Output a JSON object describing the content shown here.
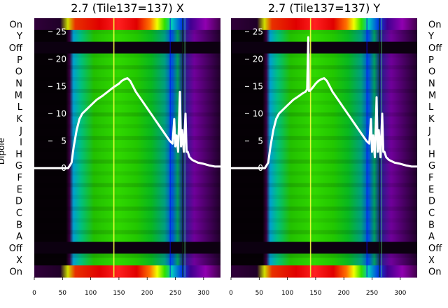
{
  "figure": {
    "ylabel": "Dipole",
    "row_labels": [
      "On",
      "Y",
      "Off",
      "P",
      "O",
      "N",
      "M",
      "L",
      "K",
      "J",
      "I",
      "H",
      "G",
      "F",
      "E",
      "D",
      "C",
      "B",
      "A",
      "Off",
      "X",
      "On"
    ]
  },
  "chart_data": [
    {
      "type": "heatmap",
      "title": "2.7 (Tile137=137) X",
      "xlim": [
        0,
        330
      ],
      "xticks": [
        0,
        50,
        100,
        150,
        200,
        250,
        300
      ],
      "overlay_ylim": [
        -20,
        27.5
      ],
      "overlay_yticks": [
        0,
        5,
        10,
        15,
        20,
        25
      ],
      "overlay_line": {
        "color": "#ffffff",
        "x": [
          0,
          60,
          66,
          70,
          75,
          80,
          85,
          90,
          100,
          110,
          120,
          130,
          140,
          150,
          155,
          160,
          165,
          170,
          175,
          180,
          190,
          200,
          210,
          220,
          230,
          240,
          245,
          248,
          250,
          252,
          255,
          258,
          260,
          262,
          265,
          268,
          270,
          272,
          275,
          280,
          290,
          300,
          310,
          320,
          330
        ],
        "y": [
          0,
          0,
          1,
          4,
          7,
          9,
          10,
          10.5,
          11.5,
          12.5,
          13.2,
          14,
          14.8,
          15.5,
          16,
          16.3,
          16.5,
          16,
          15,
          14,
          12.5,
          11,
          9.5,
          8,
          6.5,
          5,
          4.5,
          9,
          4,
          6,
          3,
          14,
          4,
          7,
          3,
          10,
          3,
          3,
          2,
          1.5,
          1,
          0.8,
          0.5,
          0.3,
          0.3
        ]
      }
    },
    {
      "type": "heatmap",
      "title": "2.7 (Tile137=137) Y",
      "xlim": [
        0,
        330
      ],
      "xticks": [
        0,
        50,
        100,
        150,
        200,
        250,
        300
      ],
      "overlay_ylim": [
        -20,
        27.5
      ],
      "overlay_yticks": [
        0,
        5,
        10,
        15,
        20,
        25
      ],
      "overlay_line": {
        "color": "#ffffff",
        "x": [
          0,
          60,
          66,
          70,
          75,
          80,
          85,
          90,
          100,
          110,
          120,
          128,
          132,
          135,
          137,
          138,
          140,
          145,
          150,
          155,
          160,
          165,
          170,
          175,
          180,
          190,
          200,
          210,
          220,
          230,
          240,
          245,
          248,
          250,
          252,
          255,
          258,
          260,
          262,
          265,
          268,
          270,
          272,
          275,
          280,
          290,
          300,
          310,
          320,
          330
        ],
        "y": [
          0,
          0,
          1,
          4,
          7,
          9,
          10,
          10.5,
          11.5,
          12.5,
          13.2,
          13.8,
          14,
          14.5,
          24,
          14.2,
          14.2,
          14.8,
          15.5,
          16,
          16.3,
          16.5,
          16,
          15,
          14,
          12.5,
          11,
          9.5,
          8,
          6.5,
          5,
          4.5,
          9,
          3,
          6,
          2,
          13,
          3,
          7,
          2,
          10,
          3,
          3,
          2,
          1.5,
          1,
          0.8,
          0.5,
          0.3,
          0.3
        ]
      }
    }
  ]
}
